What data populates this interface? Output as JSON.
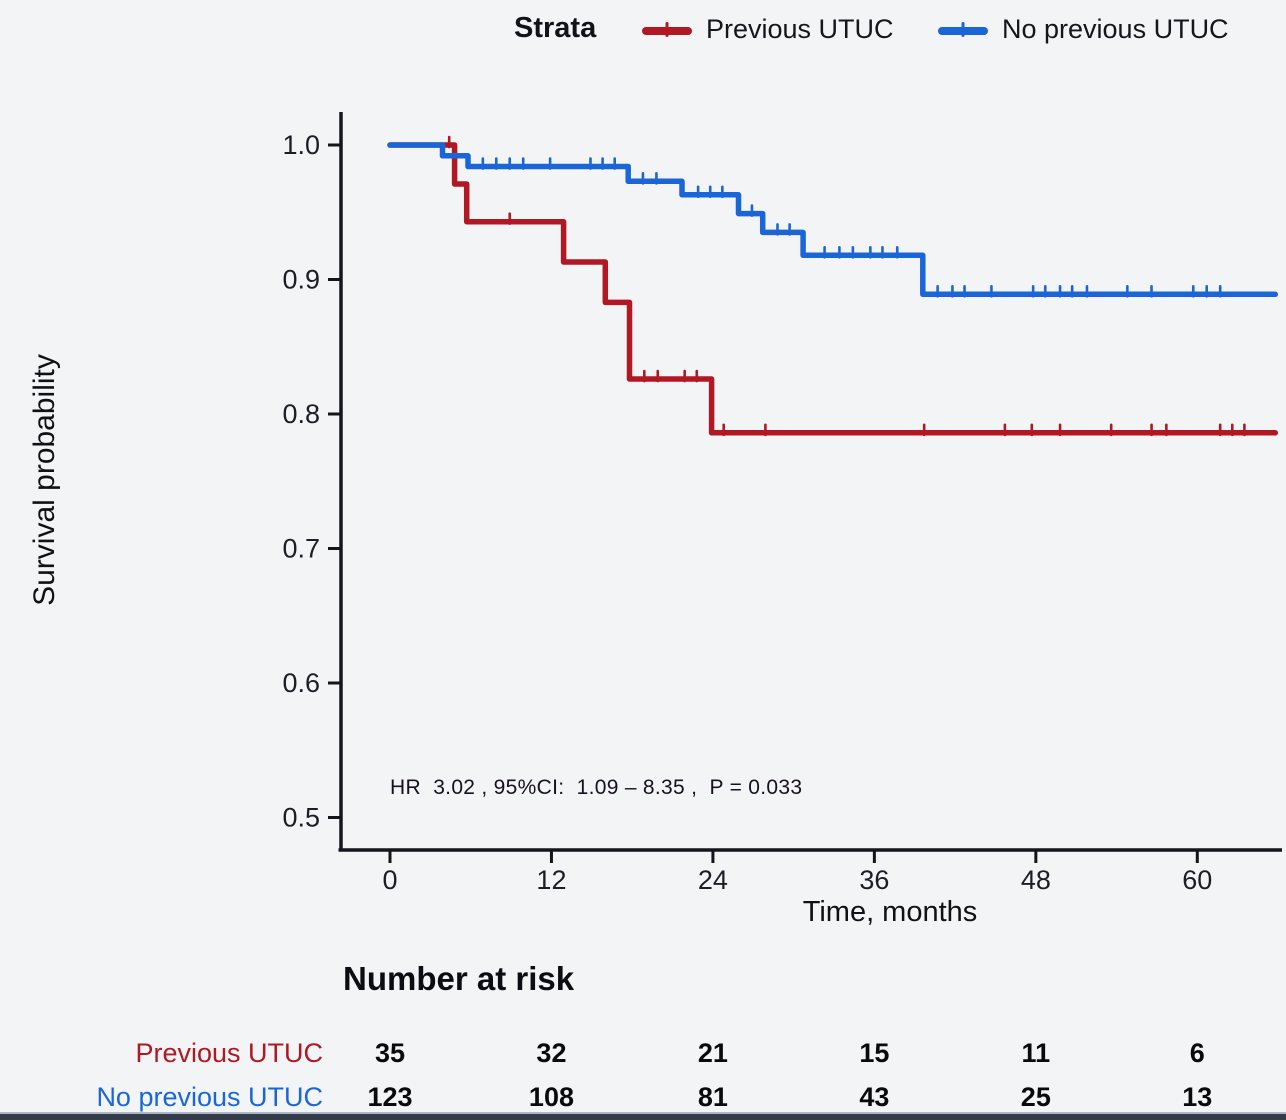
{
  "chart_data": {
    "type": "line",
    "subtype": "kaplan-meier-step",
    "title": "",
    "xlabel": "Time, months",
    "ylabel": "Survival probability",
    "xticks": [
      0,
      12,
      24,
      36,
      48,
      60
    ],
    "yticks": [
      1.0,
      0.9,
      0.8,
      0.7,
      0.6,
      0.5
    ],
    "xlim": [
      0,
      66.5
    ],
    "ylim": [
      0.475,
      1.005
    ],
    "grid": false,
    "legend": {
      "title": "Strata",
      "position": "top",
      "entries": [
        {
          "label": "Previous UTUC",
          "color": "#b01824"
        },
        {
          "label": "No previous UTUC",
          "color": "#1a66d9"
        }
      ]
    },
    "annotation": "HR  3.02 , 95%CI:  1.09 – 8.35 ,  P = 0.033",
    "series": [
      {
        "name": "Previous UTUC",
        "color": "#b01824",
        "start_value": 1.0,
        "end_time": 65.8,
        "steps": [
          [
            4.8,
            0.971
          ],
          [
            5.7,
            0.943
          ],
          [
            12.9,
            0.913
          ],
          [
            16.0,
            0.883
          ],
          [
            17.8,
            0.826
          ],
          [
            23.9,
            0.786
          ]
        ],
        "censors": [
          [
            4.4,
            1.0
          ],
          [
            8.9,
            0.943
          ],
          [
            18.9,
            0.826
          ],
          [
            19.9,
            0.826
          ],
          [
            21.9,
            0.826
          ],
          [
            22.8,
            0.826
          ],
          [
            24.8,
            0.786
          ],
          [
            27.9,
            0.786
          ],
          [
            39.7,
            0.786
          ],
          [
            45.7,
            0.786
          ],
          [
            47.7,
            0.786
          ],
          [
            49.8,
            0.786
          ],
          [
            53.6,
            0.786
          ],
          [
            56.6,
            0.786
          ],
          [
            57.7,
            0.786
          ],
          [
            61.7,
            0.786
          ],
          [
            62.6,
            0.786
          ],
          [
            63.5,
            0.786
          ]
        ]
      },
      {
        "name": "No previous UTUC",
        "color": "#1a66d9",
        "start_value": 1.0,
        "end_time": 65.8,
        "steps": [
          [
            3.9,
            0.992
          ],
          [
            5.8,
            0.984
          ],
          [
            17.7,
            0.973
          ],
          [
            21.7,
            0.963
          ],
          [
            25.9,
            0.949
          ],
          [
            27.7,
            0.935
          ],
          [
            30.7,
            0.918
          ],
          [
            39.6,
            0.889
          ]
        ],
        "censors": [
          [
            6.9,
            0.984
          ],
          [
            7.9,
            0.984
          ],
          [
            8.9,
            0.984
          ],
          [
            9.9,
            0.984
          ],
          [
            11.9,
            0.984
          ],
          [
            14.9,
            0.984
          ],
          [
            15.8,
            0.984
          ],
          [
            16.7,
            0.984
          ],
          [
            18.8,
            0.973
          ],
          [
            19.8,
            0.973
          ],
          [
            22.9,
            0.963
          ],
          [
            23.8,
            0.963
          ],
          [
            24.7,
            0.963
          ],
          [
            26.9,
            0.949
          ],
          [
            28.8,
            0.935
          ],
          [
            29.7,
            0.935
          ],
          [
            32.3,
            0.918
          ],
          [
            33.4,
            0.918
          ],
          [
            34.4,
            0.918
          ],
          [
            35.7,
            0.918
          ],
          [
            36.6,
            0.918
          ],
          [
            37.7,
            0.918
          ],
          [
            40.7,
            0.889
          ],
          [
            41.8,
            0.889
          ],
          [
            42.7,
            0.889
          ],
          [
            44.7,
            0.889
          ],
          [
            47.8,
            0.889
          ],
          [
            48.7,
            0.889
          ],
          [
            49.8,
            0.889
          ],
          [
            50.7,
            0.889
          ],
          [
            51.8,
            0.889
          ],
          [
            54.8,
            0.889
          ],
          [
            56.6,
            0.889
          ],
          [
            59.7,
            0.889
          ],
          [
            60.7,
            0.889
          ],
          [
            61.7,
            0.889
          ]
        ]
      }
    ],
    "risk_table": {
      "title": "Number at risk",
      "times": [
        0,
        12,
        24,
        36,
        48,
        60
      ],
      "rows": [
        {
          "label": "Previous UTUC",
          "color": "#b01824",
          "values": [
            35,
            32,
            21,
            15,
            11,
            6
          ]
        },
        {
          "label": "No previous UTUC",
          "color": "#1a66d9",
          "values": [
            123,
            108,
            81,
            43,
            25,
            13
          ]
        }
      ]
    }
  }
}
